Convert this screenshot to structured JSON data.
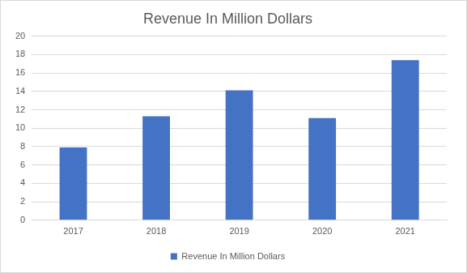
{
  "chart_data": {
    "type": "bar",
    "title": "Revenue In Million Dollars",
    "categories": [
      "2017",
      "2018",
      "2019",
      "2020",
      "2021"
    ],
    "series": [
      {
        "name": "Revenue In Million Dollars",
        "color": "#4472c4",
        "values": [
          7.9,
          11.3,
          14.1,
          11.1,
          17.4
        ]
      }
    ],
    "ylim": [
      0,
      20
    ],
    "yticks": [
      0,
      2,
      4,
      6,
      8,
      10,
      12,
      14,
      16,
      18,
      20
    ],
    "grid": true,
    "legend": "bottom"
  }
}
